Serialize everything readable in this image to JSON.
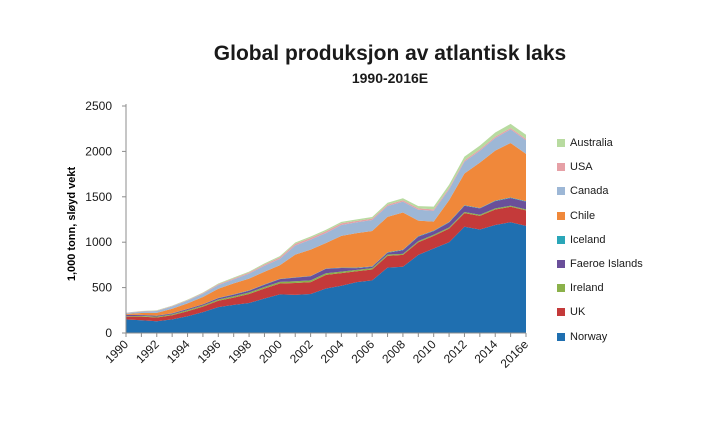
{
  "chart_data": {
    "type": "area",
    "stacked": true,
    "title": "Global produksjon av atlantisk laks",
    "subtitle": "1990-2016E",
    "xlabel": "",
    "ylabel": "1,000 tonn, sløyd vekt",
    "ylim": [
      0,
      2500
    ],
    "yticks": [
      "0",
      "500",
      "1000",
      "1500",
      "2000",
      "2500"
    ],
    "grid": false,
    "legend_position": "right",
    "categories": [
      "1990",
      "1991",
      "1992",
      "1993",
      "1994",
      "1995",
      "1996",
      "1997",
      "1998",
      "1999",
      "2000",
      "2001",
      "2002",
      "2003",
      "2004",
      "2005",
      "2006",
      "2007",
      "2008",
      "2009",
      "2010",
      "2011",
      "2012",
      "2013",
      "2014",
      "2015",
      "2016e"
    ],
    "xtick_labels": [
      "1990",
      "",
      "1992",
      "",
      "1994",
      "",
      "1996",
      "",
      "1998",
      "",
      "2000",
      "",
      "2002",
      "",
      "2004",
      "",
      "2006",
      "",
      "2008",
      "",
      "2010",
      "",
      "2012",
      "",
      "2014",
      "",
      "2016e"
    ],
    "series": [
      {
        "name": "Norway",
        "color": "#1f6fb0",
        "values": [
          150,
          140,
          130,
          150,
          185,
          230,
          285,
          310,
          330,
          380,
          425,
          420,
          430,
          490,
          520,
          560,
          580,
          720,
          730,
          860,
          930,
          1000,
          1170,
          1140,
          1190,
          1220,
          1180
        ]
      },
      {
        "name": "UK",
        "color": "#c43a3a",
        "values": [
          30,
          40,
          40,
          45,
          55,
          60,
          70,
          80,
          100,
          110,
          120,
          130,
          130,
          150,
          140,
          120,
          120,
          130,
          130,
          140,
          140,
          150,
          150,
          150,
          170,
          170,
          170
        ]
      },
      {
        "name": "Ireland",
        "color": "#8bb14a",
        "values": [
          6,
          8,
          10,
          10,
          12,
          13,
          14,
          15,
          16,
          17,
          18,
          20,
          20,
          18,
          16,
          15,
          14,
          14,
          12,
          12,
          12,
          12,
          12,
          12,
          12,
          12,
          12
        ]
      },
      {
        "name": "Faeroe Islands",
        "color": "#6a4f9a",
        "values": [
          12,
          10,
          10,
          10,
          12,
          12,
          15,
          18,
          20,
          25,
          30,
          40,
          45,
          50,
          40,
          20,
          15,
          20,
          40,
          50,
          40,
          55,
          70,
          70,
          80,
          85,
          85
        ]
      },
      {
        "name": "Iceland",
        "color": "#2aa6b8",
        "values": [
          2,
          2,
          2,
          2,
          2,
          2,
          3,
          3,
          3,
          3,
          3,
          3,
          3,
          3,
          4,
          5,
          5,
          5,
          5,
          5,
          5,
          5,
          5,
          5,
          6,
          6,
          6
        ]
      },
      {
        "name": "Chile",
        "color": "#f0883a",
        "values": [
          10,
          20,
          30,
          50,
          60,
          80,
          100,
          120,
          130,
          140,
          150,
          250,
          290,
          280,
          350,
          380,
          390,
          390,
          410,
          170,
          100,
          240,
          350,
          500,
          550,
          600,
          520
        ]
      },
      {
        "name": "Canada",
        "color": "#9db7d6",
        "values": [
          10,
          15,
          20,
          25,
          30,
          35,
          40,
          45,
          55,
          65,
          70,
          100,
          110,
          110,
          120,
          120,
          120,
          120,
          120,
          120,
          120,
          120,
          130,
          130,
          140,
          150,
          150
        ]
      },
      {
        "name": "USA",
        "color": "#e6a0a6",
        "values": [
          3,
          4,
          5,
          5,
          6,
          8,
          10,
          10,
          12,
          15,
          18,
          20,
          20,
          20,
          18,
          15,
          15,
          15,
          15,
          15,
          15,
          15,
          15,
          15,
          15,
          15,
          15
        ]
      },
      {
        "name": "Australia",
        "color": "#b8dba0",
        "values": [
          2,
          3,
          3,
          4,
          5,
          6,
          8,
          10,
          10,
          12,
          12,
          14,
          15,
          16,
          16,
          17,
          18,
          20,
          22,
          25,
          30,
          35,
          40,
          42,
          45,
          45,
          45
        ]
      }
    ],
    "legend_order": [
      "Australia",
      "USA",
      "Canada",
      "Chile",
      "Iceland",
      "Faeroe Islands",
      "Ireland",
      "UK",
      "Norway"
    ]
  }
}
